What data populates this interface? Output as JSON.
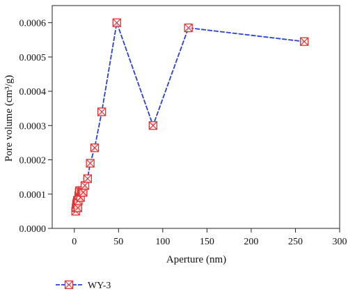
{
  "chart_data": {
    "type": "line",
    "title": "",
    "xlabel": "Aperture (nm)",
    "ylabel": "Pore volume (cm³/g)",
    "xlim": [
      -25,
      300
    ],
    "ylim": [
      0,
      0.00065
    ],
    "x_ticks": [
      0,
      50,
      100,
      150,
      200,
      250,
      300
    ],
    "x_tick_labels": [
      "0",
      "50",
      "100",
      "150",
      "200",
      "250",
      "300"
    ],
    "y_ticks": [
      0,
      0.0001,
      0.0002,
      0.0003,
      0.0004,
      0.0005,
      0.0006
    ],
    "y_tick_labels": [
      "0.0000",
      "0.0001",
      "0.0002",
      "0.0003",
      "0.0004",
      "0.0005",
      "0.0006"
    ],
    "grid": false,
    "legend_position": "bottom-left",
    "colors": {
      "line": "#2a3fd6",
      "marker": "#e03030"
    },
    "series": [
      {
        "name": "WY-3",
        "x": [
          1.5,
          2,
          2.5,
          3,
          3.5,
          4,
          4.5,
          5,
          5.5,
          6,
          7,
          8,
          9,
          10,
          12,
          15,
          18,
          23,
          31,
          48,
          89,
          129,
          260
        ],
        "y": [
          5e-05,
          6e-05,
          7e-05,
          7.5e-05,
          8.2e-05,
          6e-05,
          8e-05,
          9.5e-05,
          0.000105,
          0.00011,
          9e-05,
          0.000105,
          0.00011,
          0.000105,
          0.000125,
          0.000145,
          0.00019,
          0.000235,
          0.00034,
          0.0006,
          0.0003,
          0.000585,
          0.000545
        ]
      }
    ]
  }
}
